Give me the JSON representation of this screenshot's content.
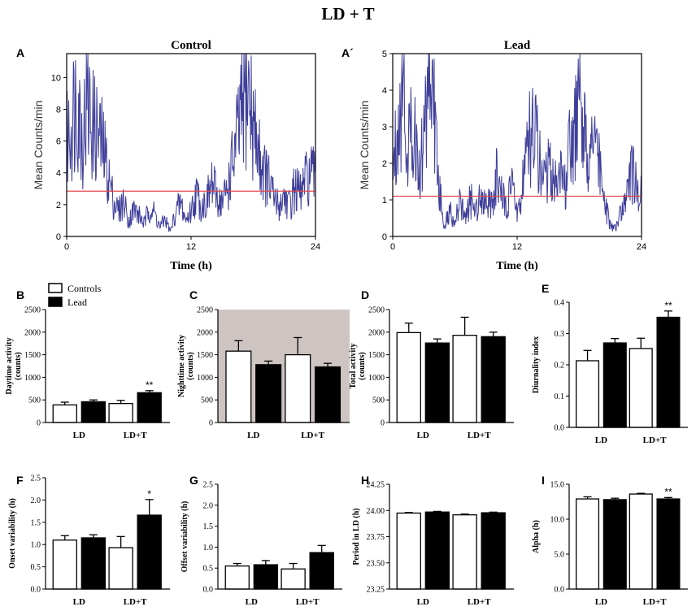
{
  "figure_title": "LD + T",
  "colors": {
    "trace": "#3f3f9a",
    "mean_line": "#e0474c",
    "bar_control": "#ffffff",
    "bar_lead": "#000000",
    "axis": "#000000",
    "night_shade": "#cec4c2"
  },
  "legend": {
    "controls": "Controls",
    "lead": "Lead"
  },
  "chart_data": [
    {
      "id": "A",
      "panel_label": "A",
      "type": "line",
      "title": "Control",
      "xlabel": "Time (h)",
      "ylabel": "Mean Counts/min",
      "xlim": [
        0,
        24
      ],
      "ylim": [
        0,
        11.5
      ],
      "xticks": [
        0,
        12,
        24
      ],
      "xtick_labels": [
        "0",
        "12",
        "24"
      ],
      "yticks": [
        0,
        2,
        4,
        6,
        8,
        10
      ],
      "ytick_labels": [
        "0",
        "2",
        "4",
        "6",
        "8",
        "10"
      ],
      "mean_line": 2.85,
      "series": [
        {
          "name": "Control activity",
          "step_h": 0.5,
          "values": [
            5.8,
            7.4,
            9.2,
            6.1,
            8.6,
            7.0,
            6.4,
            5.6,
            3.9,
            2.3,
            1.6,
            2.2,
            1.0,
            1.7,
            1.3,
            0.8,
            1.9,
            1.4,
            0.6,
            1.1,
            0.3,
            1.5,
            2.1,
            1.0,
            1.6,
            2.7,
            1.9,
            2.2,
            3.3,
            2.5,
            2.1,
            3.0,
            4.6,
            6.3,
            8.2,
            9.3,
            7.0,
            5.3,
            4.2,
            3.4,
            2.3,
            1.9,
            2.6,
            1.9,
            3.1,
            2.6,
            3.4,
            3.9,
            3.5
          ]
        }
      ]
    },
    {
      "id": "A_prime",
      "panel_label": "A´",
      "type": "line",
      "title": "Lead",
      "xlabel": "Time (h)",
      "ylabel": "Mean Counts/min",
      "xlim": [
        0,
        24
      ],
      "ylim": [
        0,
        5
      ],
      "xticks": [
        0,
        12,
        24
      ],
      "xtick_labels": [
        "0",
        "12",
        "24"
      ],
      "yticks": [
        0,
        1,
        2,
        3,
        4,
        5
      ],
      "ytick_labels": [
        "0",
        "1",
        "2",
        "3",
        "4",
        "5"
      ],
      "mean_line": 1.1,
      "series": [
        {
          "name": "Lead activity",
          "step_h": 0.5,
          "values": [
            1.8,
            3.2,
            4.1,
            2.4,
            3.3,
            1.6,
            2.6,
            4.9,
            3.4,
            1.2,
            0.3,
            0.7,
            0.4,
            0.9,
            0.5,
            1.0,
            0.7,
            1.3,
            1.0,
            0.8,
            1.6,
            1.1,
            0.9,
            1.3,
            0.6,
            1.4,
            2.4,
            3.0,
            2.3,
            1.6,
            1.9,
            1.5,
            1.8,
            1.3,
            2.2,
            2.7,
            3.3,
            2.8,
            2.2,
            3.0,
            1.6,
            0.8,
            0.3,
            0.2,
            0.6,
            1.0,
            1.8,
            1.4,
            1.1
          ]
        }
      ]
    },
    {
      "id": "B",
      "panel_label": "B",
      "type": "bar",
      "ylabel_line1": "Daytime activity",
      "ylabel_line2": "(counts)",
      "categories": [
        "LD",
        "LD+T"
      ],
      "ylim": [
        0,
        2500
      ],
      "yticks": [
        0,
        500,
        1000,
        1500,
        2000,
        2500
      ],
      "ytick_labels": [
        "0",
        "500",
        "1000",
        "1500",
        "2000",
        "2500"
      ],
      "shaded": false,
      "series": [
        {
          "name": "Controls",
          "values": [
            390,
            420
          ],
          "errors": [
            60,
            70
          ],
          "sig": [
            "",
            ""
          ]
        },
        {
          "name": "Lead",
          "values": [
            460,
            660
          ],
          "errors": [
            40,
            45
          ],
          "sig": [
            "",
            "**"
          ]
        }
      ]
    },
    {
      "id": "C",
      "panel_label": "C",
      "type": "bar",
      "ylabel_line1": "Nighttime activity",
      "ylabel_line2": "(counts)",
      "categories": [
        "LD",
        "LD+T"
      ],
      "ylim": [
        0,
        2500
      ],
      "yticks": [
        0,
        500,
        1000,
        1500,
        2000,
        2500
      ],
      "ytick_labels": [
        "0",
        "500",
        "1000",
        "1500",
        "2000",
        "2500"
      ],
      "shaded": true,
      "series": [
        {
          "name": "Controls",
          "values": [
            1580,
            1500
          ],
          "errors": [
            230,
            380
          ],
          "sig": [
            "",
            ""
          ]
        },
        {
          "name": "Lead",
          "values": [
            1280,
            1230
          ],
          "errors": [
            80,
            80
          ],
          "sig": [
            "",
            ""
          ]
        }
      ]
    },
    {
      "id": "D",
      "panel_label": "D",
      "type": "bar",
      "ylabel_line1": "Total activity",
      "ylabel_line2": "(counts)",
      "categories": [
        "LD",
        "LD+T"
      ],
      "ylim": [
        0,
        2500
      ],
      "yticks": [
        0,
        500,
        1000,
        1500,
        2000,
        2500
      ],
      "ytick_labels": [
        "0",
        "500",
        "1000",
        "1500",
        "2000",
        "2500"
      ],
      "shaded": false,
      "series": [
        {
          "name": "Controls",
          "values": [
            1990,
            1930
          ],
          "errors": [
            210,
            400
          ],
          "sig": [
            "",
            ""
          ]
        },
        {
          "name": "Lead",
          "values": [
            1760,
            1900
          ],
          "errors": [
            90,
            100
          ],
          "sig": [
            "",
            ""
          ]
        }
      ]
    },
    {
      "id": "E",
      "panel_label": "E",
      "type": "bar",
      "ylabel_line1": "Diurnality index",
      "ylabel_line2": "",
      "categories": [
        "LD",
        "LD+T"
      ],
      "ylim": [
        0,
        0.4
      ],
      "yticks": [
        0,
        0.1,
        0.2,
        0.3,
        0.4
      ],
      "ytick_labels": [
        "0.0",
        "0.1",
        "0.2",
        "0.3",
        "0.4"
      ],
      "shaded": false,
      "series": [
        {
          "name": "Controls",
          "values": [
            0.213,
            0.252
          ],
          "errors": [
            0.033,
            0.033
          ],
          "sig": [
            "",
            ""
          ]
        },
        {
          "name": "Lead",
          "values": [
            0.27,
            0.352
          ],
          "errors": [
            0.014,
            0.02
          ],
          "sig": [
            "",
            "**"
          ]
        }
      ]
    },
    {
      "id": "F",
      "panel_label": "F",
      "type": "bar",
      "ylabel_line1": "Onset variability (h)",
      "ylabel_line2": "",
      "categories": [
        "LD",
        "LD+T"
      ],
      "ylim": [
        0,
        2.5
      ],
      "yticks": [
        0,
        0.5,
        1,
        1.5,
        2,
        2.5
      ],
      "ytick_labels": [
        "0.0",
        "0.5",
        "1.0",
        "1.5",
        "2.0",
        "2.5"
      ],
      "shaded": false,
      "series": [
        {
          "name": "Controls",
          "values": [
            1.1,
            0.93
          ],
          "errors": [
            0.1,
            0.25
          ],
          "sig": [
            "",
            ""
          ]
        },
        {
          "name": "Lead",
          "values": [
            1.15,
            1.66
          ],
          "errors": [
            0.07,
            0.35
          ],
          "sig": [
            "",
            "*"
          ]
        }
      ]
    },
    {
      "id": "G",
      "panel_label": "G",
      "type": "bar",
      "ylabel_line1": "Offset variability (h)",
      "ylabel_line2": "",
      "categories": [
        "LD",
        "LD+T"
      ],
      "ylim": [
        0,
        2.5
      ],
      "yticks": [
        0,
        0.5,
        1,
        1.5,
        2,
        2.5
      ],
      "ytick_labels": [
        "0.0",
        "0.5",
        "1.0",
        "1.5",
        "2.0",
        "2.5"
      ],
      "shaded": false,
      "series": [
        {
          "name": "Controls",
          "values": [
            0.55,
            0.48
          ],
          "errors": [
            0.06,
            0.13
          ],
          "sig": [
            "",
            ""
          ]
        },
        {
          "name": "Lead",
          "values": [
            0.58,
            0.87
          ],
          "errors": [
            0.1,
            0.17
          ],
          "sig": [
            "",
            ""
          ]
        }
      ]
    },
    {
      "id": "H",
      "panel_label": "H",
      "type": "bar",
      "ylabel_line1": "Period in LD (h)",
      "ylabel_line2": "",
      "categories": [
        "LD",
        "LD+T"
      ],
      "ylim": [
        23.25,
        24.25
      ],
      "yticks": [
        23.25,
        23.5,
        23.75,
        24,
        24.25
      ],
      "ytick_labels": [
        "23.25",
        "23.50",
        "23.75",
        "24.00",
        "24.25"
      ],
      "shaded": false,
      "series": [
        {
          "name": "Controls",
          "values": [
            23.975,
            23.958
          ],
          "errors": [
            0.006,
            0.008
          ],
          "sig": [
            "",
            ""
          ]
        },
        {
          "name": "Lead",
          "values": [
            23.985,
            23.978
          ],
          "errors": [
            0.006,
            0.006
          ],
          "sig": [
            "",
            ""
          ]
        }
      ]
    },
    {
      "id": "I",
      "panel_label": "I",
      "type": "bar",
      "ylabel_line1": "Alpha (h)",
      "ylabel_line2": "",
      "categories": [
        "LD",
        "LD+T"
      ],
      "ylim": [
        0,
        15
      ],
      "yticks": [
        0,
        5,
        10,
        15
      ],
      "ytick_labels": [
        "0.0",
        "5.0",
        "10.0",
        "15.0"
      ],
      "shaded": false,
      "series": [
        {
          "name": "Controls",
          "values": [
            12.9,
            13.6
          ],
          "errors": [
            0.3,
            0.1
          ],
          "sig": [
            "",
            ""
          ]
        },
        {
          "name": "Lead",
          "values": [
            12.8,
            12.9
          ],
          "errors": [
            0.2,
            0.2
          ],
          "sig": [
            "",
            "**"
          ]
        }
      ]
    }
  ]
}
